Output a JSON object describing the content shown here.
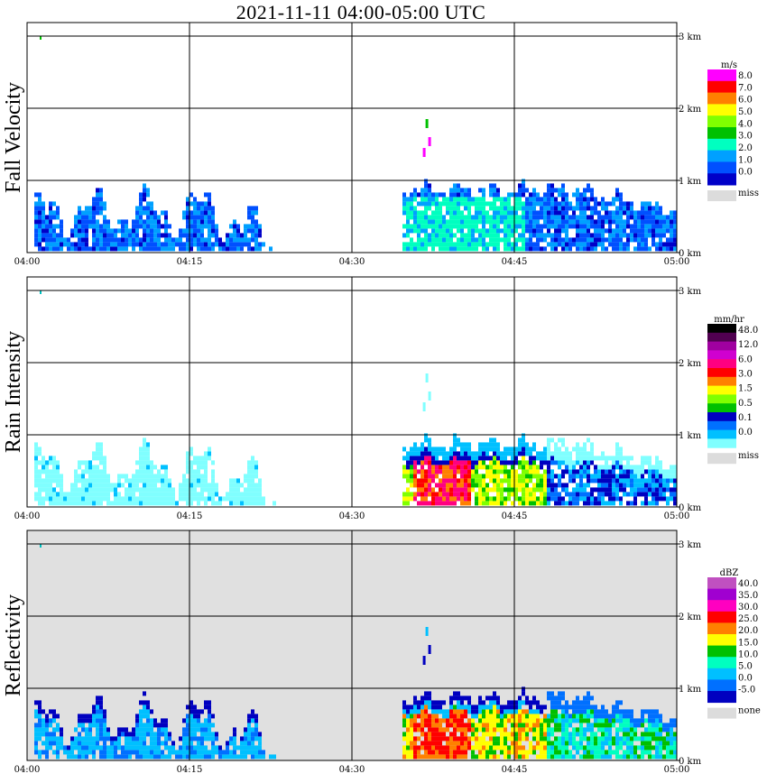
{
  "title": "2021-11-11   04:00-05:00 UTC",
  "chart_data": [
    {
      "type": "heatmap",
      "ylabel": "Fall Velocity",
      "unit": "m/s",
      "x_ticks": [
        "04:00",
        "04:15",
        "04:30",
        "04:45",
        "05:00"
      ],
      "y_ticks": [
        "0 km",
        "1 km",
        "2 km",
        "3 km"
      ],
      "ylim_km": [
        0,
        3.2
      ],
      "colorbar": {
        "labels": [
          "8.0",
          "7.0",
          "6.0",
          "5.0",
          "4.0",
          "3.0",
          "2.0",
          "1.0",
          "0.0"
        ],
        "colors": [
          "#ff00ff",
          "#ff0000",
          "#ff8000",
          "#ffff00",
          "#80ff00",
          "#00c000",
          "#00ffc0",
          "#00a0ff",
          "#0050ff",
          "#0000c8"
        ],
        "miss_label": "miss"
      },
      "background": "#ffffff"
    },
    {
      "type": "heatmap",
      "ylabel": "Rain Intensity",
      "unit": "mm/hr",
      "x_ticks": [
        "04:00",
        "04:15",
        "04:30",
        "04:45",
        "05:00"
      ],
      "y_ticks": [
        "0 km",
        "1 km",
        "2 km",
        "3 km"
      ],
      "ylim_km": [
        0,
        3.2
      ],
      "colorbar": {
        "labels": [
          "48.0",
          "12.0",
          "6.0",
          "3.0",
          "1.5",
          "0.5",
          "0.1",
          "0.0"
        ],
        "colors": [
          "#000000",
          "#500050",
          "#a000a0",
          "#d000d0",
          "#ff0080",
          "#ff0000",
          "#ff8000",
          "#ffff00",
          "#80ff00",
          "#00c000",
          "#0000c0",
          "#0070ff",
          "#00c0ff",
          "#80ffff"
        ],
        "miss_label": "miss"
      },
      "background": "#ffffff"
    },
    {
      "type": "heatmap",
      "ylabel": "Reflectivity",
      "unit": "dBZ",
      "x_ticks": [
        "04:00",
        "04:15",
        "04:30",
        "04:45",
        "05:00"
      ],
      "y_ticks": [
        "0 km",
        "1 km",
        "2 km",
        "3 km"
      ],
      "ylim_km": [
        0,
        3.2
      ],
      "colorbar": {
        "labels": [
          "40.0",
          "35.0",
          "30.0",
          "25.0",
          "20.0",
          "15.0",
          "10.0",
          "5.0",
          "0.0",
          "-5.0"
        ],
        "colors": [
          "#c050c0",
          "#a000d0",
          "#ff00c0",
          "#ff0000",
          "#ff8000",
          "#ffff00",
          "#00c000",
          "#00ffc0",
          "#00c0ff",
          "#0070ff",
          "#0000c0"
        ],
        "miss_label": "none"
      },
      "background": "#e0e0e0"
    }
  ]
}
